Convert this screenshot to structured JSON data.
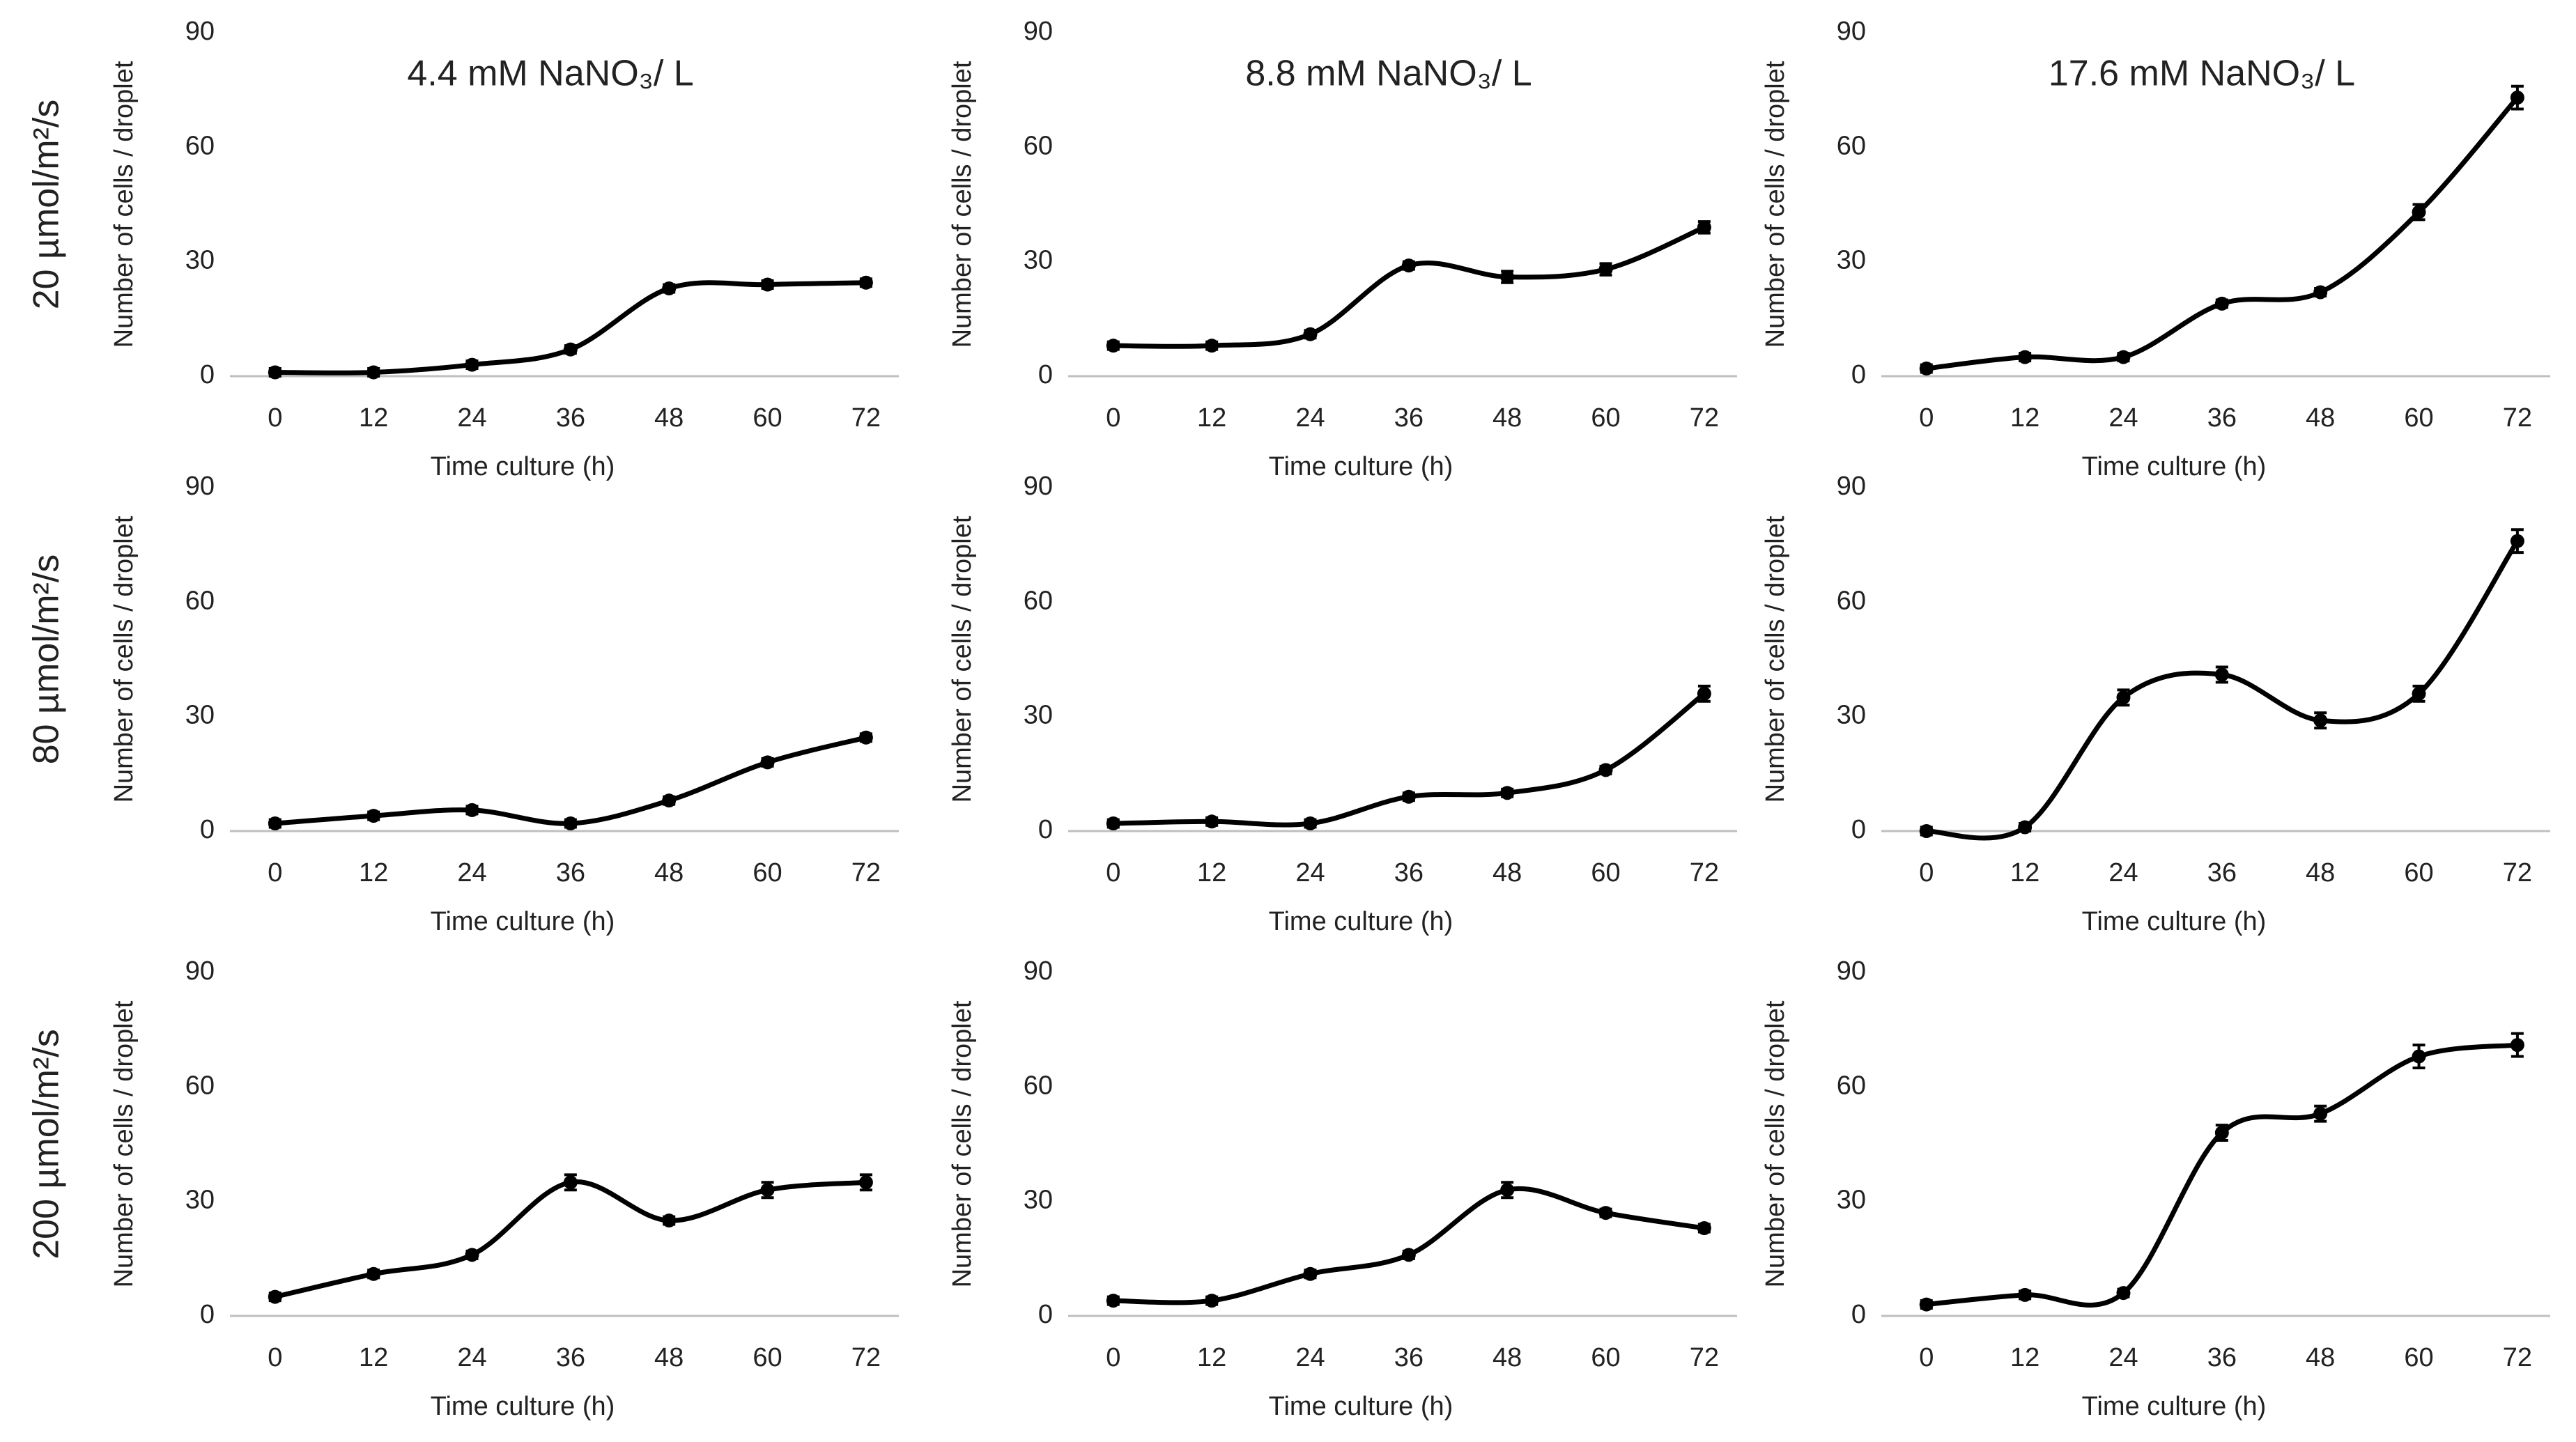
{
  "row_labels": [
    "20 µmol/m²/s",
    "80 µmol/m²/s",
    "200 µmol/m²/s"
  ],
  "chart_data": [
    {
      "type": "line",
      "title": "4.4 mM NaNO₃/ L",
      "xlabel": "Time culture (h)",
      "ylabel": "Number of cells / droplet",
      "x": [
        0,
        12,
        24,
        36,
        48,
        60,
        72
      ],
      "xlim": [
        -5.5,
        76
      ],
      "xticks": [
        0,
        12,
        24,
        36,
        48,
        60,
        72
      ],
      "ylim": [
        0,
        90
      ],
      "yticks": [
        0,
        30,
        60,
        90
      ],
      "series": [
        {
          "color": "#000000",
          "values": [
            1,
            1,
            3,
            7,
            23,
            24,
            24.5
          ],
          "errors": [
            1,
            1,
            1,
            1,
            1,
            1,
            1
          ]
        }
      ]
    },
    {
      "type": "line",
      "title": "8.8 mM NaNO₃/ L",
      "xlabel": "Time culture (h)",
      "ylabel": "Number of cells / droplet",
      "x": [
        0,
        12,
        24,
        36,
        48,
        60,
        72
      ],
      "xlim": [
        -5.5,
        76
      ],
      "xticks": [
        0,
        12,
        24,
        36,
        48,
        60,
        72
      ],
      "ylim": [
        0,
        90
      ],
      "yticks": [
        0,
        30,
        60,
        90
      ],
      "series": [
        {
          "color": "#000000",
          "values": [
            8,
            8,
            11,
            29,
            26,
            28,
            39
          ],
          "errors": [
            1,
            1,
            1,
            1,
            1.5,
            1.5,
            1.5
          ]
        }
      ]
    },
    {
      "type": "line",
      "title": "17.6 mM NaNO₃/ L",
      "xlabel": "Time culture (h)",
      "ylabel": "Number of cells / droplet",
      "x": [
        0,
        12,
        24,
        36,
        48,
        60,
        72
      ],
      "xlim": [
        -5.5,
        76
      ],
      "xticks": [
        0,
        12,
        24,
        36,
        48,
        60,
        72
      ],
      "ylim": [
        0,
        90
      ],
      "yticks": [
        0,
        30,
        60,
        90
      ],
      "series": [
        {
          "color": "#000000",
          "values": [
            2,
            5,
            5,
            19,
            22,
            43,
            73
          ],
          "errors": [
            1,
            1,
            1,
            1,
            1,
            2,
            3
          ]
        }
      ]
    },
    {
      "type": "line",
      "xlabel": "Time culture (h)",
      "ylabel": "Number of cells / droplet",
      "x": [
        0,
        12,
        24,
        36,
        48,
        60,
        72
      ],
      "xlim": [
        -5.5,
        76
      ],
      "xticks": [
        0,
        12,
        24,
        36,
        48,
        60,
        72
      ],
      "ylim": [
        0,
        90
      ],
      "yticks": [
        0,
        30,
        60,
        90
      ],
      "series": [
        {
          "color": "#000000",
          "values": [
            2,
            4,
            5.5,
            2,
            8,
            18,
            24.5
          ],
          "errors": [
            1,
            1,
            1,
            1,
            1,
            1,
            1
          ]
        }
      ]
    },
    {
      "type": "line",
      "xlabel": "Time culture (h)",
      "ylabel": "Number of cells / droplet",
      "x": [
        0,
        12,
        24,
        36,
        48,
        60,
        72
      ],
      "xlim": [
        -5.5,
        76
      ],
      "xticks": [
        0,
        12,
        24,
        36,
        48,
        60,
        72
      ],
      "ylim": [
        0,
        90
      ],
      "yticks": [
        0,
        30,
        60,
        90
      ],
      "series": [
        {
          "color": "#000000",
          "values": [
            2,
            2.5,
            2,
            9,
            10,
            16,
            36
          ],
          "errors": [
            1,
            1,
            1,
            1,
            1,
            1,
            2
          ]
        }
      ]
    },
    {
      "type": "line",
      "xlabel": "Time culture (h)",
      "ylabel": "Number of cells / droplet",
      "x": [
        0,
        12,
        24,
        36,
        48,
        60,
        72
      ],
      "xlim": [
        -5.5,
        76
      ],
      "xticks": [
        0,
        12,
        24,
        36,
        48,
        60,
        72
      ],
      "ylim": [
        0,
        90
      ],
      "yticks": [
        0,
        30,
        60,
        90
      ],
      "series": [
        {
          "color": "#000000",
          "values": [
            0,
            1,
            35,
            41,
            29,
            36,
            76
          ],
          "errors": [
            1,
            1,
            2,
            2,
            2,
            2,
            3
          ]
        }
      ]
    },
    {
      "type": "line",
      "xlabel": "Time culture (h)",
      "ylabel": "Number of cells / droplet",
      "x": [
        0,
        12,
        24,
        36,
        48,
        60,
        72
      ],
      "xlim": [
        -5.5,
        76
      ],
      "xticks": [
        0,
        12,
        24,
        36,
        48,
        60,
        72
      ],
      "ylim": [
        0,
        90
      ],
      "yticks": [
        0,
        30,
        60,
        90
      ],
      "series": [
        {
          "color": "#000000",
          "values": [
            5,
            11,
            16,
            35,
            25,
            33,
            35
          ],
          "errors": [
            1,
            1,
            1,
            2,
            1,
            2,
            2
          ]
        }
      ]
    },
    {
      "type": "line",
      "xlabel": "Time culture (h)",
      "ylabel": "Number of cells / droplet",
      "x": [
        0,
        12,
        24,
        36,
        48,
        60,
        72
      ],
      "xlim": [
        -5.5,
        76
      ],
      "xticks": [
        0,
        12,
        24,
        36,
        48,
        60,
        72
      ],
      "ylim": [
        0,
        90
      ],
      "yticks": [
        0,
        30,
        60,
        90
      ],
      "series": [
        {
          "color": "#000000",
          "values": [
            4,
            4,
            11,
            16,
            33,
            27,
            23
          ],
          "errors": [
            1,
            1,
            1,
            1,
            2,
            1,
            1
          ]
        }
      ]
    },
    {
      "type": "line",
      "xlabel": "Time culture (h)",
      "ylabel": "Number of cells / droplet",
      "x": [
        0,
        12,
        24,
        36,
        48,
        60,
        72
      ],
      "xlim": [
        -5.5,
        76
      ],
      "xticks": [
        0,
        12,
        24,
        36,
        48,
        60,
        72
      ],
      "ylim": [
        0,
        90
      ],
      "yticks": [
        0,
        30,
        60,
        90
      ],
      "series": [
        {
          "color": "#000000",
          "values": [
            3,
            5.5,
            6,
            48,
            53,
            68,
            71
          ],
          "errors": [
            1,
            1,
            1,
            2,
            2,
            3,
            3
          ]
        }
      ]
    }
  ]
}
